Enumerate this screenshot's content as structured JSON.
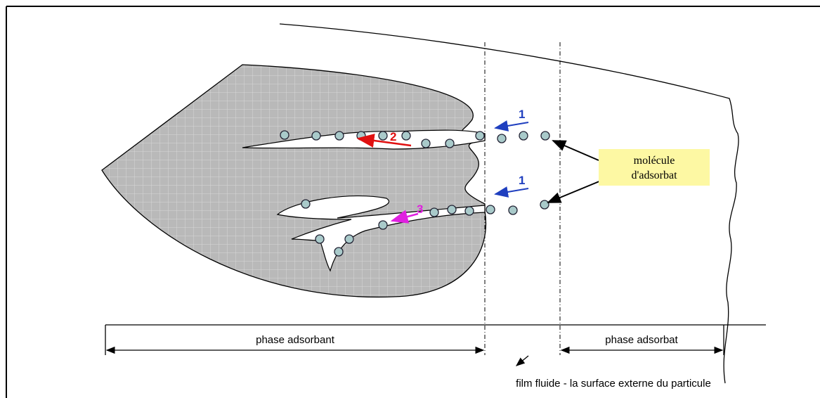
{
  "diagram": {
    "arrow_labels": [
      "1",
      "2",
      "1",
      "3"
    ],
    "callout": [
      "molécule",
      "d'adsorbat"
    ],
    "dimensions": [
      "phase adsorbant",
      "phase adsorbat"
    ],
    "caption": "film fluide - la surface externe du particule"
  }
}
